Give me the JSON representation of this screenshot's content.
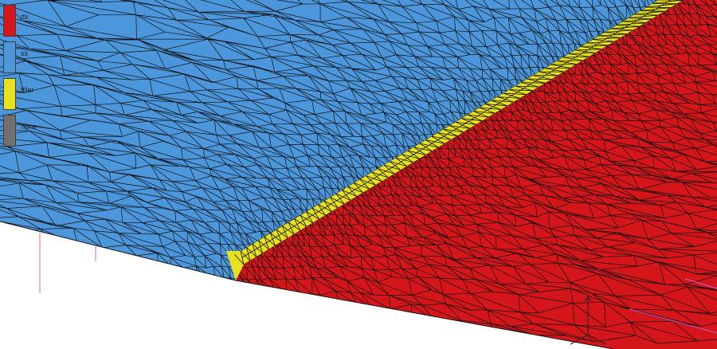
{
  "viewport": {
    "regions": {
      "sx": {
        "fill": "#4c97dc"
      },
      "dx": {
        "fill": "#d4151a"
      },
      "filler": {
        "fill": "#e8e21c"
      }
    },
    "background": "#ffffff",
    "edge_color": "#101010",
    "guide_color": "#d060d0"
  },
  "legend": {
    "items": [
      {
        "label": "dx",
        "color": "#d4151a"
      },
      {
        "label": "sx",
        "color": "#4c97dc"
      },
      {
        "label": "filler",
        "color": "#e8e21c"
      },
      {
        "label": "none",
        "color": "#707070"
      }
    ]
  }
}
